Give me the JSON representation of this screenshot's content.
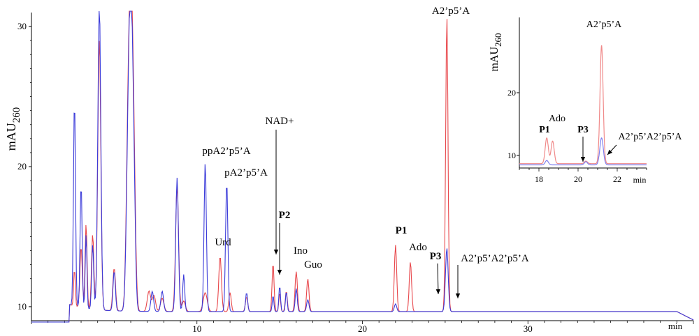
{
  "chart_data": [
    {
      "type": "line",
      "title": "",
      "ylabel": "mAU",
      "ylabel_sub": "260",
      "xlabel": "min",
      "xlim": [
        0,
        40
      ],
      "ylim": [
        9.0,
        31.0
      ],
      "x_ticks": [
        "10",
        "20",
        "30"
      ],
      "x_tick_values": [
        10,
        20,
        30
      ],
      "y_ticks": [
        "10",
        "20",
        "30"
      ],
      "y_tick_values": [
        10,
        20,
        30
      ],
      "colors": {
        "red": "#e8474b",
        "blue": "#3b3bd9"
      },
      "series": [
        {
          "color": "#e8474b",
          "peaks": [
            [
              2.6,
              11.8,
              0.05
            ],
            [
              3.0,
              13.5,
              0.07
            ],
            [
              3.3,
              15.2,
              0.06
            ],
            [
              3.7,
              14.5,
              0.07
            ],
            [
              4.1,
              28.5,
              0.09
            ],
            [
              5.0,
              12.2,
              0.08
            ],
            [
              5.8,
              15,
              0.1
            ],
            [
              6.0,
              31.5,
              0.14
            ],
            [
              6.2,
              15,
              0.1
            ],
            [
              7.1,
              10.6,
              0.1
            ],
            [
              7.4,
              10.3,
              0.1
            ],
            [
              7.9,
              10.1,
              0.1
            ],
            [
              8.8,
              18.2,
              0.09
            ],
            [
              9.2,
              9.9,
              0.1
            ],
            [
              10.5,
              10.5,
              0.12
            ],
            [
              11.4,
              13.1,
              0.08
            ],
            [
              12.0,
              10.5,
              0.07
            ],
            [
              13.0,
              10.2,
              0.07
            ],
            [
              14.6,
              12.6,
              0.06
            ],
            [
              15.0,
              10.5,
              0.05
            ],
            [
              15.4,
              10.6,
              0.06
            ],
            [
              16.0,
              12.0,
              0.07
            ],
            [
              16.7,
              11.5,
              0.07
            ],
            [
              22.0,
              13.9,
              0.07
            ],
            [
              22.9,
              12.7,
              0.07
            ],
            [
              25.1,
              30.3,
              0.07
            ]
          ],
          "values_note": "",
          "baseline": 9.15
        },
        {
          "color": "#3b3bd9",
          "peaks": [
            [
              2.6,
              23.9,
              0.06
            ],
            [
              3.0,
              18.0,
              0.06
            ],
            [
              3.3,
              14.5,
              0.05
            ],
            [
              3.7,
              13.8,
              0.06
            ],
            [
              4.1,
              31.0,
              0.09
            ],
            [
              5.0,
              12.0,
              0.07
            ],
            [
              5.8,
              15,
              0.1
            ],
            [
              6.0,
              31.5,
              0.13
            ],
            [
              6.2,
              14.5,
              0.09
            ],
            [
              7.3,
              10.6,
              0.08
            ],
            [
              7.9,
              10.6,
              0.08
            ],
            [
              8.8,
              18.7,
              0.08
            ],
            [
              9.2,
              11.8,
              0.06
            ],
            [
              10.5,
              19.8,
              0.07
            ],
            [
              11.8,
              18.4,
              0.07
            ],
            [
              13.0,
              10.5,
              0.06
            ],
            [
              14.6,
              10.3,
              0.05
            ],
            [
              15.0,
              11.0,
              0.05
            ],
            [
              15.4,
              10.6,
              0.05
            ],
            [
              16.0,
              10.8,
              0.06
            ],
            [
              16.7,
              10.0,
              0.07
            ],
            [
              22.0,
              9.7,
              0.07
            ],
            [
              25.1,
              13.7,
              0.08
            ]
          ],
          "values_note": "",
          "baseline": 9.15
        }
      ],
      "annotations": [
        {
          "text": "ppA2’p5’A",
          "x": 10.5,
          "y": 19.8,
          "bold": false
        },
        {
          "text": "pA2’p5’A",
          "x": 11.8,
          "y": 18.4,
          "bold": false
        },
        {
          "text": "Urd",
          "x": 11.4,
          "y": 13.1,
          "bold": false
        },
        {
          "text": "NAD+",
          "x": 14.6,
          "y": 12.6,
          "bold": false,
          "arrow": true
        },
        {
          "text": "P2",
          "x": 15.0,
          "y": 10.5,
          "bold": true,
          "arrow": true
        },
        {
          "text": "Ino",
          "x": 16.0,
          "y": 12.0,
          "bold": false
        },
        {
          "text": "Guo",
          "x": 16.7,
          "y": 11.5,
          "bold": false
        },
        {
          "text": "P1",
          "x": 22.0,
          "y": 13.9,
          "bold": true
        },
        {
          "text": "Ado",
          "x": 22.9,
          "y": 12.7,
          "bold": false
        },
        {
          "text": "P3",
          "x": 24.5,
          "y": 9.8,
          "bold": true,
          "arrow": true
        },
        {
          "text": "A2’p5’A",
          "x": 25.1,
          "y": 30.3,
          "bold": false
        },
        {
          "text": "A2’p5’A2’p5’A",
          "x": 25.6,
          "y": 9.6,
          "bold": false,
          "arrow": true
        }
      ]
    },
    {
      "type": "line",
      "title": "",
      "ylabel": "mAU",
      "ylabel_sub": "260",
      "xlabel": "min",
      "xlim": [
        17,
        23.5
      ],
      "ylim": [
        8.0,
        32.0
      ],
      "x_ticks": [
        "18",
        "20",
        "22"
      ],
      "x_tick_values": [
        18,
        20,
        22
      ],
      "y_ticks": [
        "10",
        "20"
      ],
      "y_tick_values": [
        10,
        20
      ],
      "series": [
        {
          "color": "#f08a8a",
          "peaks": [
            [
              18.4,
              12.8,
              0.08
            ],
            [
              18.7,
              12.3,
              0.08
            ],
            [
              20.4,
              9.1,
              0.08
            ],
            [
              21.2,
              27.5,
              0.08
            ]
          ],
          "baseline": 8.7
        },
        {
          "color": "#8080ee",
          "peaks": [
            [
              18.4,
              9.2,
              0.08
            ],
            [
              20.4,
              9.0,
              0.08
            ],
            [
              21.2,
              12.8,
              0.09
            ]
          ],
          "baseline": 8.5
        }
      ],
      "annotations": [
        {
          "text": "A2’p5’A",
          "x": 21.2,
          "y": 27.5,
          "bold": false
        },
        {
          "text": "Ado",
          "x": 18.7,
          "y": 12.3,
          "bold": false
        },
        {
          "text": "P1",
          "x": 18.4,
          "y": 12.8,
          "bold": true
        },
        {
          "text": "P3",
          "x": 20.4,
          "y": 9.1,
          "bold": true,
          "arrow": true
        },
        {
          "text": "A2’p5’A2’p5’A",
          "x": 21.5,
          "y": 9.5,
          "bold": false,
          "arrow": true
        }
      ]
    }
  ]
}
